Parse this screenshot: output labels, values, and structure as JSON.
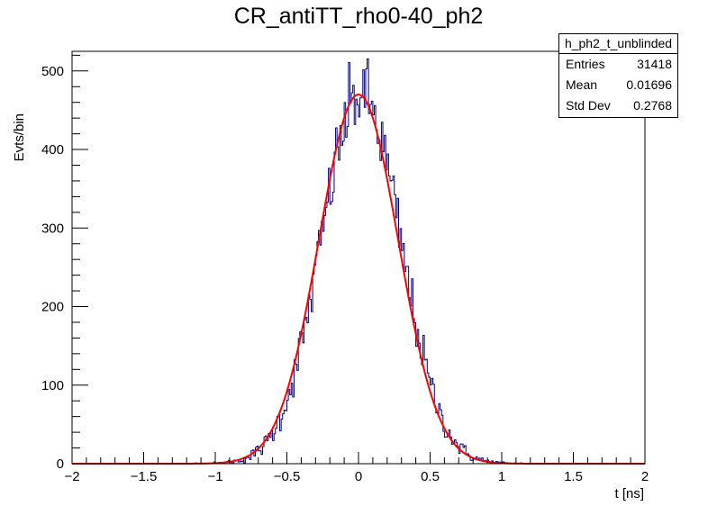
{
  "chart_data": {
    "type": "histogram",
    "title": "CR_antiTT_rho0-40_ph2",
    "xlabel": "t [ns]",
    "ylabel": "Evts/bin",
    "xlim": [
      -2,
      2
    ],
    "ylim": [
      0,
      525
    ],
    "x_ticks": [
      -2,
      -1.5,
      -1,
      -0.5,
      0,
      0.5,
      1,
      1.5,
      2
    ],
    "x_tick_labels": [
      "−2",
      "−1.5",
      "−1",
      "−0.5",
      "0",
      "0.5",
      "1",
      "1.5",
      "2"
    ],
    "y_ticks": [
      0,
      100,
      200,
      300,
      400,
      500
    ],
    "y_tick_labels": [
      "0",
      "100",
      "200",
      "300",
      "400",
      "500"
    ],
    "histogram": {
      "color": "#000080",
      "bins": 400,
      "amplitude": 470,
      "mean": 0.01696,
      "sigma": 0.2768
    },
    "fit": {
      "type": "gaussian",
      "color": "#ff0000",
      "amplitude": 470,
      "mean": 0.0,
      "sigma": 0.2768
    },
    "stats_box": {
      "title": "h_ph2_t_unblinded",
      "rows": [
        {
          "label": "Entries",
          "value": "31418"
        },
        {
          "label": "Mean",
          "value": "0.01696"
        },
        {
          "label": "Std Dev",
          "value": "0.2768"
        }
      ]
    }
  }
}
